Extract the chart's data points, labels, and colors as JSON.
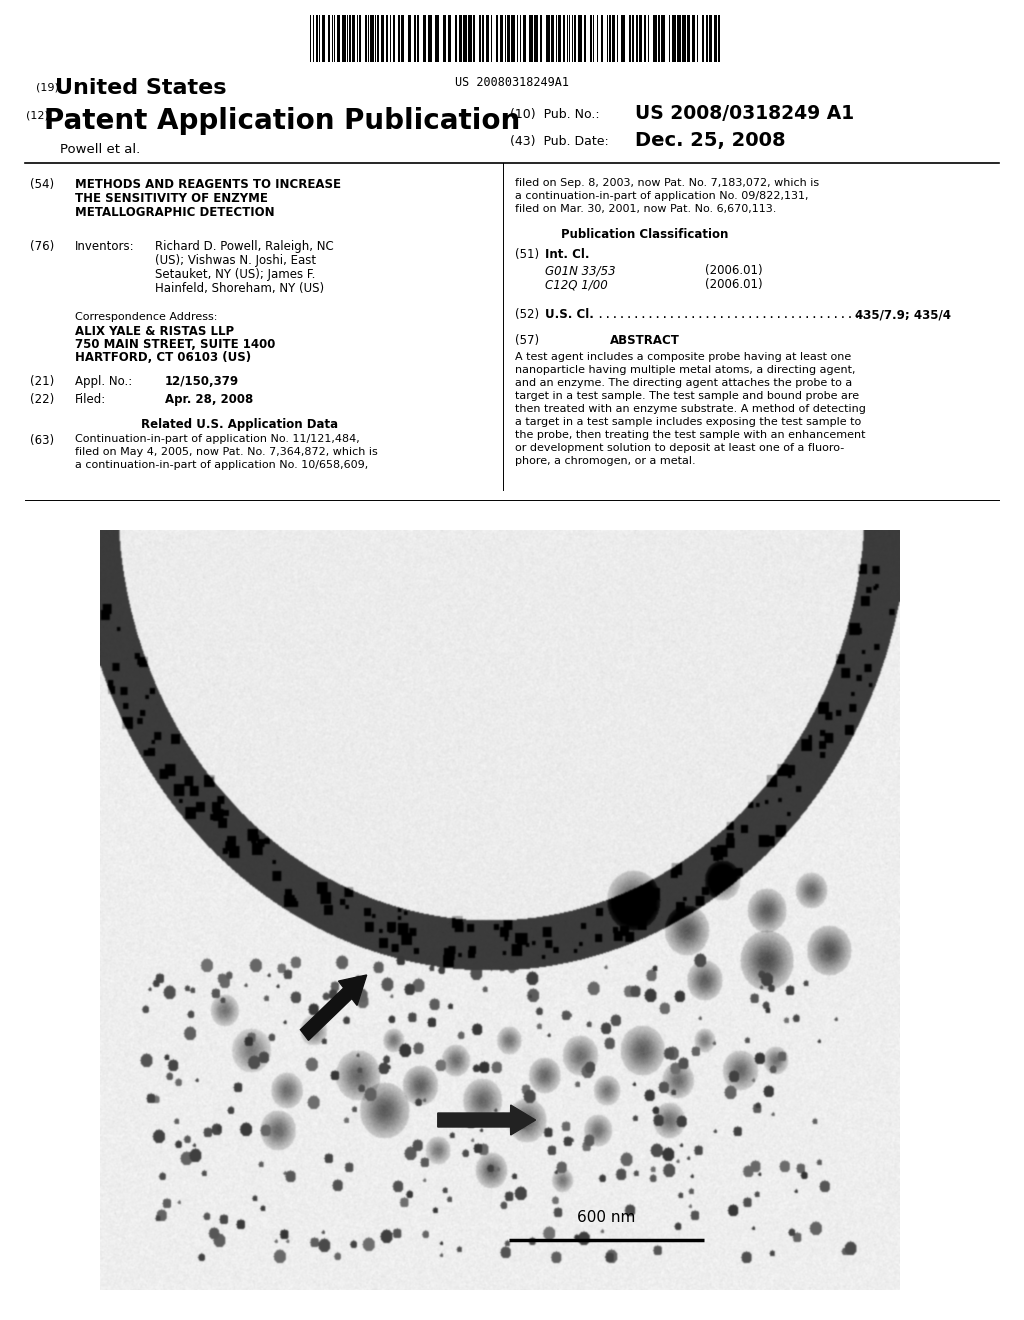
{
  "background_color": "#ffffff",
  "barcode_text": "US 20080318249A1",
  "header": {
    "line19_super": "(19)",
    "line19_text": "United States",
    "line12_super": "(12)",
    "line12_text": "Patent Application Publication",
    "pub_no_label": "(10)  Pub. No.:",
    "pub_no_value": "US 2008/0318249 A1",
    "inventors_label": "Powell et al.",
    "pub_date_label": "(43)  Pub. Date:",
    "pub_date_value": "Dec. 25, 2008"
  },
  "left_col": {
    "title_num": "(54)",
    "title_lines": [
      "METHODS AND REAGENTS TO INCREASE",
      "THE SENSITIVITY OF ENZYME",
      "METALLOGRAPHIC DETECTION"
    ],
    "inventors_num": "(76)",
    "inventors_label": "Inventors:",
    "inventors_text_lines": [
      "Richard D. Powell, Raleigh, NC",
      "(US); Vishwas N. Joshi, East",
      "Setauket, NY (US); James F.",
      "Hainfeld, Shoreham, NY (US)"
    ],
    "corr_label": "Correspondence Address:",
    "corr_lines": [
      "ALIX YALE & RISTAS LLP",
      "750 MAIN STREET, SUITE 1400",
      "HARTFORD, CT 06103 (US)"
    ],
    "appl_num": "(21)",
    "appl_label": "Appl. No.:",
    "appl_value": "12/150,379",
    "filed_num": "(22)",
    "filed_label": "Filed:",
    "filed_value": "Apr. 28, 2008",
    "related_header": "Related U.S. Application Data",
    "related_num": "(63)",
    "related_text_lines": [
      "Continuation-in-part of application No. 11/121,484,",
      "filed on May 4, 2005, now Pat. No. 7,364,872, which is",
      "a continuation-in-part of application No. 10/658,609,"
    ]
  },
  "right_col": {
    "cont_text_lines": [
      "filed on Sep. 8, 2003, now Pat. No. 7,183,072, which is",
      "a continuation-in-part of application No. 09/822,131,",
      "filed on Mar. 30, 2001, now Pat. No. 6,670,113."
    ],
    "pub_class_header": "Publication Classification",
    "int_cl_num": "(51)",
    "int_cl_label": "Int. Cl.",
    "int_cl_g01n": "G01N 33/53",
    "int_cl_g01n_year": "(2006.01)",
    "int_cl_c12q": "C12Q 1/00",
    "int_cl_c12q_year": "(2006.01)",
    "us_cl_num": "(52)",
    "us_cl_label": "U.S. Cl.",
    "us_cl_value": "435/7.9; 435/4",
    "abstract_num": "(57)",
    "abstract_header": "ABSTRACT",
    "abstract_text_lines": [
      "A test agent includes a composite probe having at least one",
      "nanoparticle having multiple metal atoms, a directing agent,",
      "and an enzyme. The directing agent attaches the probe to a",
      "target in a test sample. The test sample and bound probe are",
      "then treated with an enzyme substrate. A method of detecting",
      "a target in a test sample includes exposing the test sample to",
      "the probe, then treating the test sample with an enhancement",
      "or development solution to deposit at least one of a fluoro-",
      "phore, a chromogen, or a metal."
    ]
  }
}
